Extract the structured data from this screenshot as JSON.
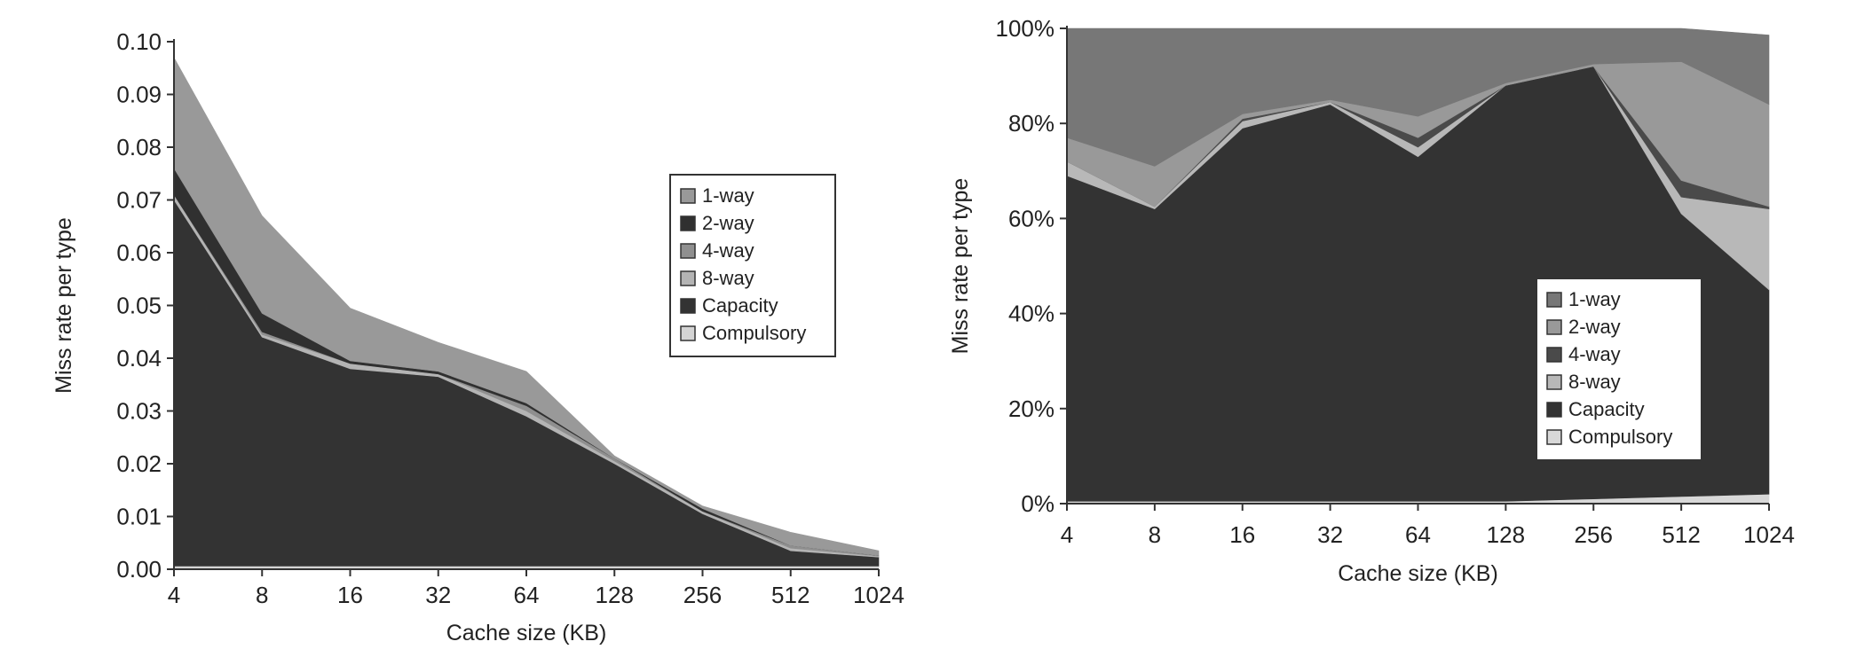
{
  "chart_data": [
    {
      "type": "area",
      "stacked": true,
      "xlabel": "Cache size (KB)",
      "ylabel": "Miss rate per type",
      "categories": [
        "4",
        "8",
        "16",
        "32",
        "64",
        "128",
        "256",
        "512",
        "1024"
      ],
      "x_scale": "log2",
      "ylim": [
        0,
        0.1
      ],
      "yticks": [
        "0.00",
        "0.01",
        "0.02",
        "0.03",
        "0.04",
        "0.05",
        "0.06",
        "0.07",
        "0.08",
        "0.09",
        "0.10"
      ],
      "grid": false,
      "legend_position": "right",
      "series": [
        {
          "name": "Compulsory",
          "color": "#d4d4d4",
          "values": [
            0.0006,
            0.0006,
            0.0006,
            0.0006,
            0.0006,
            0.0006,
            0.0006,
            0.0006,
            0.0006
          ]
        },
        {
          "name": "Capacity",
          "color": "#333333",
          "values": [
            0.0694,
            0.0434,
            0.0374,
            0.0359,
            0.0284,
            0.0194,
            0.0099,
            0.0029,
            0.0017
          ]
        },
        {
          "name": "8-way",
          "color": "#b4b4b4",
          "values": [
            0.001,
            0.0005,
            0.001,
            0.0005,
            0.001,
            0.0005,
            0.0005,
            0.0005,
            0.0002
          ]
        },
        {
          "name": "4-way",
          "color": "#8f8f8f",
          "values": [
            0,
            0.0005,
            0,
            0,
            0.001,
            0.0005,
            0,
            0.0005,
            0.0001
          ]
        },
        {
          "name": "2-way",
          "color": "#303030",
          "values": [
            0.005,
            0.0035,
            0.0005,
            0.0005,
            0.0005,
            0,
            0.0005,
            0,
            0
          ]
        },
        {
          "name": "1-way",
          "color": "#999999",
          "values": [
            0.021,
            0.0185,
            0.01,
            0.0055,
            0.006,
            0.0005,
            0.0005,
            0.0025,
            0.0009
          ]
        }
      ],
      "legend_order": [
        "1-way",
        "2-way",
        "4-way",
        "8-way",
        "Capacity",
        "Compulsory"
      ]
    },
    {
      "type": "area",
      "stacked": true,
      "xlabel": "Cache size (KB)",
      "ylabel": "Miss rate per type",
      "categories": [
        "4",
        "8",
        "16",
        "32",
        "64",
        "128",
        "256",
        "512",
        "1024"
      ],
      "x_scale": "log2",
      "ylim": [
        0,
        100
      ],
      "yticks": [
        "0%",
        "20%",
        "40%",
        "60%",
        "80%",
        "100%"
      ],
      "grid": false,
      "legend_position": "bottom-right",
      "series": [
        {
          "name": "Compulsory",
          "color": "#d8d8d8",
          "values": [
            0.5,
            0.5,
            0.5,
            0.5,
            0.5,
            0.5,
            1,
            1.5,
            2
          ]
        },
        {
          "name": "Capacity",
          "color": "#333333",
          "values": [
            68.5,
            61.5,
            78.5,
            83.5,
            72.5,
            87.5,
            91,
            59.5,
            43
          ]
        },
        {
          "name": "8-way",
          "color": "#b8b8b8",
          "values": [
            3,
            0.5,
            1.5,
            0.5,
            2,
            0,
            0,
            3.5,
            17
          ]
        },
        {
          "name": "4-way",
          "color": "#4a4a4a",
          "values": [
            0,
            0,
            0.5,
            0,
            2,
            0,
            0,
            3.5,
            0.5
          ]
        },
        {
          "name": "2-way",
          "color": "#999999",
          "values": [
            5,
            8.5,
            1,
            0.5,
            4.5,
            0.5,
            0.5,
            25,
            21.5
          ]
        },
        {
          "name": "1-way",
          "color": "#777777",
          "values": [
            23,
            29,
            18,
            15,
            18.5,
            11.5,
            7.5,
            7,
            14.6
          ]
        }
      ],
      "legend_order": [
        "1-way",
        "2-way",
        "4-way",
        "8-way",
        "Capacity",
        "Compulsory"
      ]
    }
  ]
}
